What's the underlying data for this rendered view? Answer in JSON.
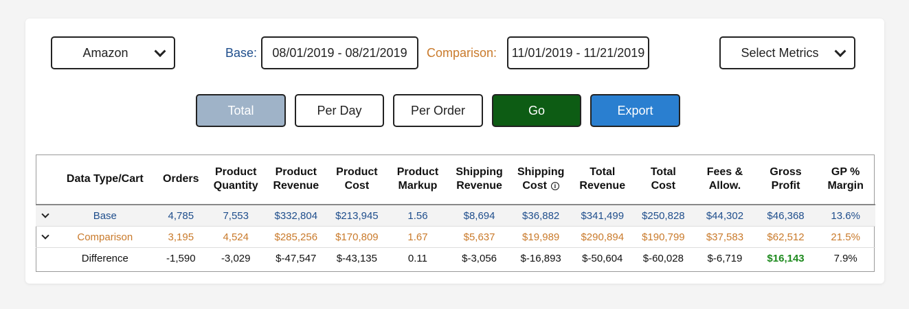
{
  "filters": {
    "channel": "Amazon",
    "base_label": "Base:",
    "base_range": "08/01/2019 - 08/21/2019",
    "comparison_label": "Comparison:",
    "comparison_range": "11/01/2019 - 11/21/2019",
    "metrics_label": "Select Metrics"
  },
  "buttons": {
    "total": "Total",
    "per_day": "Per Day",
    "per_order": "Per Order",
    "go": "Go",
    "export": "Export"
  },
  "colors": {
    "base": "#1f4e8c",
    "comparison": "#c97a2b",
    "total_active": "#9fb3c8",
    "go": "#0d5c14",
    "export": "#2a7fd0",
    "positive": "#1e8a1e"
  },
  "table": {
    "headers": {
      "type": "Data Type/Cart",
      "orders": "Orders",
      "pq1": "Product",
      "pq2": "Quantity",
      "pr1": "Product",
      "pr2": "Revenue",
      "pc1": "Product",
      "pc2": "Cost",
      "pm1": "Product",
      "pm2": "Markup",
      "sr1": "Shipping",
      "sr2": "Revenue",
      "sc1": "Shipping",
      "sc2": "Cost",
      "tr1": "Total",
      "tr2": "Revenue",
      "tc1": "Total",
      "tc2": "Cost",
      "fa1": "Fees &",
      "fa2": "Allow.",
      "gp1": "Gross",
      "gp2": "Profit",
      "gm1": "GP %",
      "gm2": "Margin"
    },
    "rows": [
      {
        "label": "Base",
        "orders": "4,785",
        "pq": "7,553",
        "pr": "$332,804",
        "pc": "$213,945",
        "pm": "1.56",
        "sr": "$8,694",
        "sc": "$36,882",
        "tr": "$341,499",
        "tc": "$250,828",
        "fa": "$44,302",
        "gp": "$46,368",
        "gm": "13.6%"
      },
      {
        "label": "Comparison",
        "orders": "3,195",
        "pq": "4,524",
        "pr": "$285,256",
        "pc": "$170,809",
        "pm": "1.67",
        "sr": "$5,637",
        "sc": "$19,989",
        "tr": "$290,894",
        "tc": "$190,799",
        "fa": "$37,583",
        "gp": "$62,512",
        "gm": "21.5%"
      },
      {
        "label": "Difference",
        "orders": "-1,590",
        "pq": "-3,029",
        "pr": "$-47,547",
        "pc": "$-43,135",
        "pm": "0.11",
        "sr": "$-3,056",
        "sc": "$-16,893",
        "tr": "$-50,604",
        "tc": "$-60,028",
        "fa": "$-6,719",
        "gp": "$16,143",
        "gm": "7.9%"
      }
    ]
  }
}
